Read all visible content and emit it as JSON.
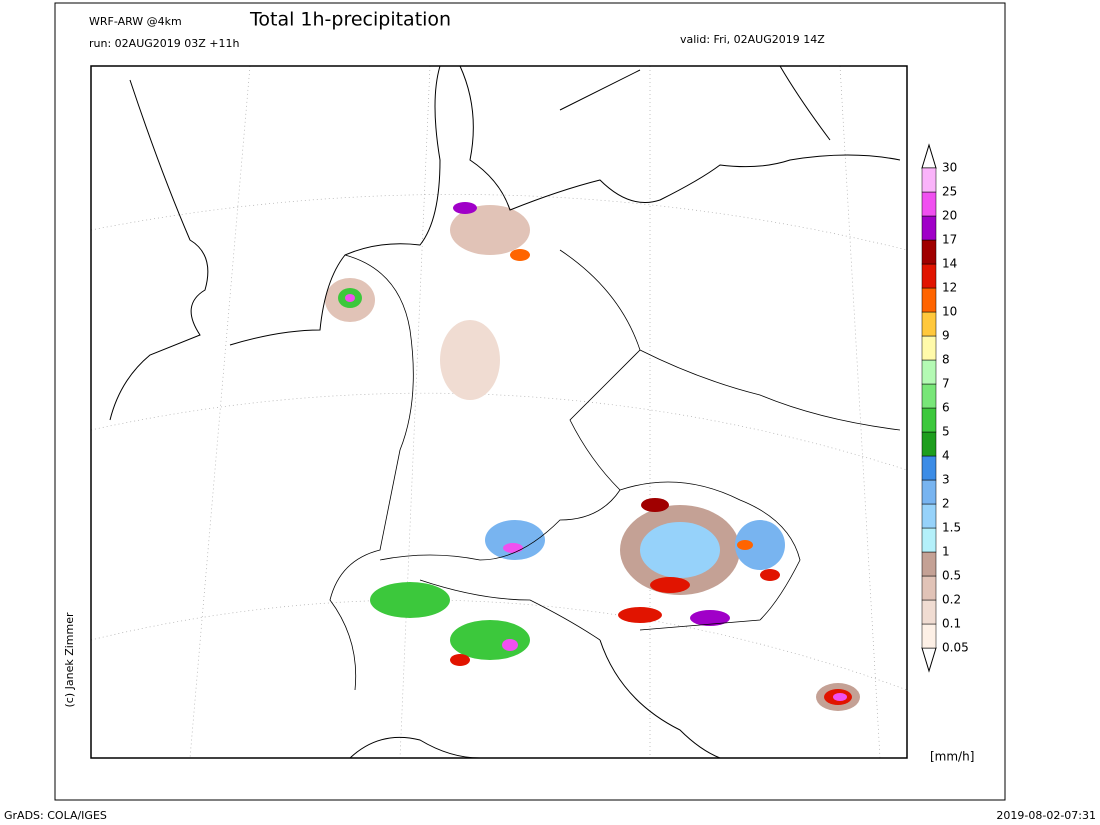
{
  "header": {
    "model": "WRF-ARW @4km",
    "title": "Total 1h-precipitation",
    "run": "run: 02AUG2019 03Z +11h",
    "valid": "valid: Fri, 02AUG2019 14Z"
  },
  "credit": "(c) Janek Zimmer",
  "colorbar": {
    "unit": "[mm/h]",
    "levels": [
      0.05,
      0.1,
      0.2,
      0.5,
      1,
      1.5,
      2,
      3,
      4,
      5,
      6,
      7,
      8,
      9,
      10,
      12,
      14,
      17,
      20,
      25,
      30
    ],
    "colors": [
      "#fdf0e6",
      "#f0dcd2",
      "#e1c3b7",
      "#c4a195",
      "#b4f0fa",
      "#96d2fa",
      "#78b4f0",
      "#3c8ce6",
      "#1e9e1e",
      "#3cc83c",
      "#78e678",
      "#b4fab4",
      "#fffaaa",
      "#ffc83c",
      "#ff6400",
      "#e11400",
      "#a00000",
      "#a000c8",
      "#f050f0",
      "#fab4fa"
    ]
  },
  "footer": {
    "left": "GrADS: COLA/IGES",
    "right": "2019-08-02-07:31"
  }
}
